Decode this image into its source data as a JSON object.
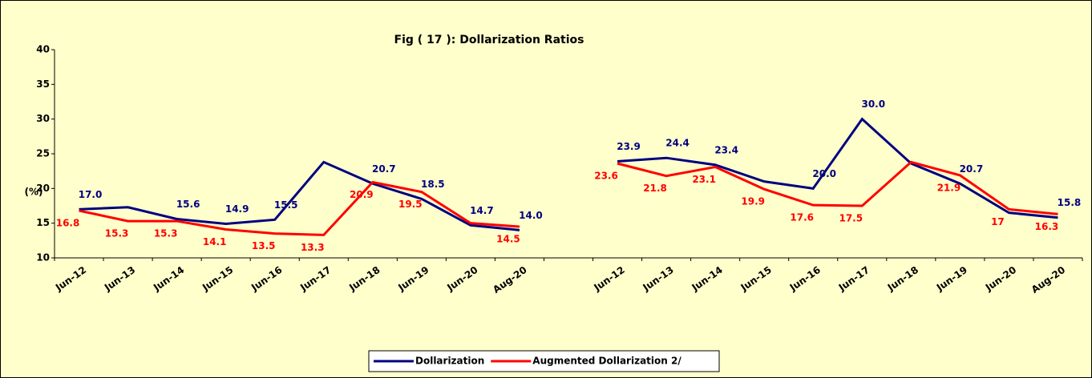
{
  "chart_data": {
    "type": "line",
    "title": "Fig ( 17 ):  Dollarization Ratios",
    "y_label": "(%)",
    "categories": [
      "Jun-12",
      "Jun-13",
      "Jun-14",
      "Jun-15",
      "Jun-16",
      "Jun-17",
      "Jun-18",
      "Jun-19",
      "Jun-20",
      "Aug-20",
      null,
      "Jun-12",
      "Jun-13",
      "Jun-14",
      "Jun-15",
      "Jun-16",
      "Jun-17",
      "Jun-18",
      "Jun-19",
      "Jun-20",
      "Aug-20"
    ],
    "series": [
      {
        "name": "Dollarization",
        "color": "#000080",
        "values": [
          17.0,
          17.3,
          15.6,
          14.9,
          15.5,
          23.8,
          20.7,
          18.5,
          14.7,
          14.0,
          null,
          23.9,
          24.4,
          23.4,
          21.0,
          20.0,
          30.0,
          23.6,
          20.7,
          16.5,
          15.8
        ],
        "value_labels": [
          "17.0",
          null,
          "15.6",
          "14.9",
          "15.5",
          null,
          "20.7",
          "18.5",
          "14.7",
          "14.0",
          null,
          "23.9",
          "24.4",
          "23.4",
          null,
          "20.0",
          "30.0",
          null,
          "20.7",
          null,
          "15.8"
        ]
      },
      {
        "name": "Augmented Dollarization 2/",
        "color": "#ff0000",
        "values": [
          16.8,
          15.3,
          15.3,
          14.1,
          13.5,
          13.3,
          20.9,
          19.5,
          15.0,
          14.5,
          null,
          23.6,
          21.8,
          23.1,
          19.9,
          17.6,
          17.5,
          23.8,
          21.9,
          17,
          16.3
        ],
        "value_labels": [
          "16.8",
          "15.3",
          "15.3",
          "14.1",
          "13.5",
          "13.3",
          "20.9",
          "19.5",
          null,
          "14.5",
          null,
          "23.6",
          "21.8",
          "23.1",
          "19.9",
          "17.6",
          "17.5",
          null,
          "21.9",
          "17",
          "16.3"
        ]
      }
    ],
    "ylim": [
      10,
      40
    ],
    "yticks": [
      10,
      15,
      20,
      25,
      30,
      35,
      40
    ],
    "legend": "bottom"
  }
}
